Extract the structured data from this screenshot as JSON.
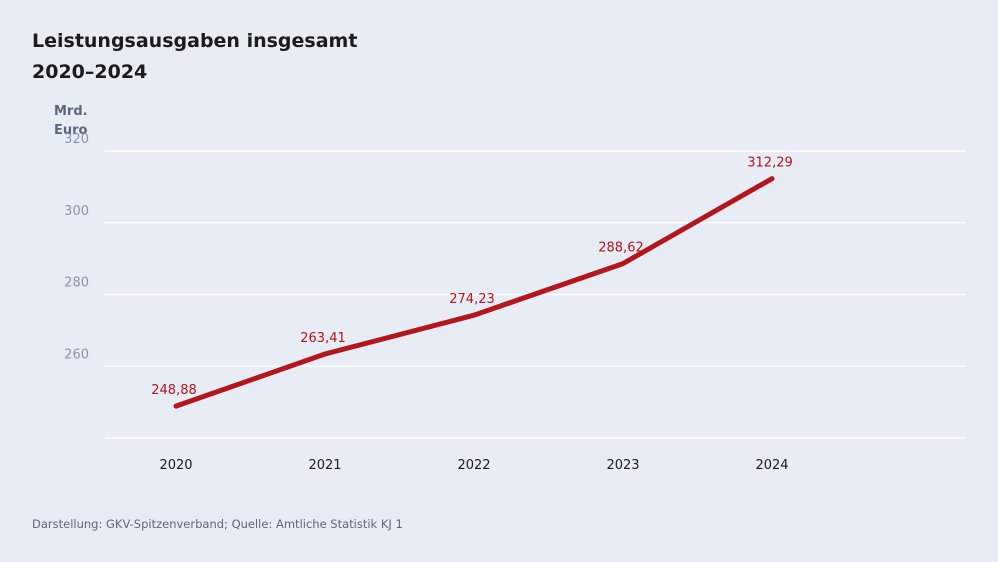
{
  "chart_data": {
    "type": "line",
    "title": "Leistungsausgaben insgesamt",
    "subtitle": "2020–2024",
    "ylabel_line1": "Mrd.",
    "ylabel_line2": "Euro",
    "categories": [
      "2020",
      "2021",
      "2022",
      "2023",
      "2024"
    ],
    "series": [
      {
        "values": [
          248.88,
          263.41,
          274.23,
          288.62,
          312.29
        ]
      }
    ],
    "data_labels": [
      "248,88",
      "263,41",
      "274,23",
      "288,62",
      "312,29"
    ],
    "yticks": [
      260,
      280,
      300,
      320
    ],
    "ylim": [
      240,
      320
    ],
    "grid": true,
    "legend": "none",
    "line_color": "#b3161c"
  },
  "source": "Darstellung: GKV-Spitzenverband; Quelle: Amtliche Statistik KJ 1"
}
